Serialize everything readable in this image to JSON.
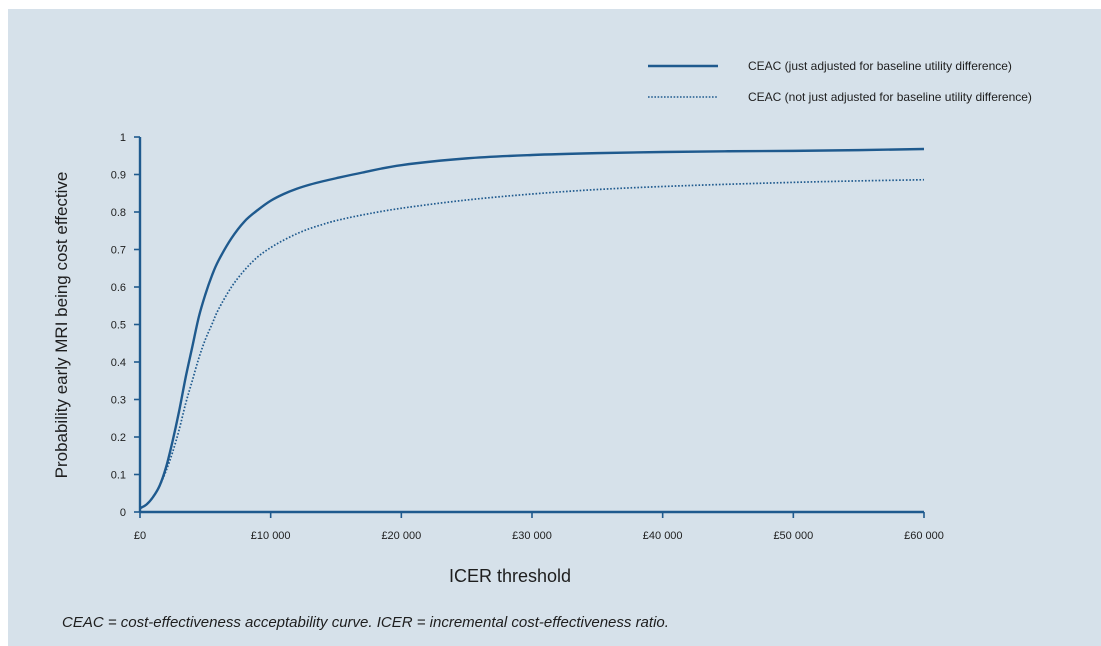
{
  "chart_data": {
    "type": "line",
    "xlabel": "ICER threshold",
    "ylabel": "Probability early MRI being cost effective",
    "xlim": [
      0,
      60000
    ],
    "ylim": [
      0,
      1
    ],
    "x_ticks": [
      0,
      10000,
      20000,
      30000,
      40000,
      50000,
      60000
    ],
    "x_tick_labels": [
      "£0",
      "£10 000",
      "£20 000",
      "£30 000",
      "£40 000",
      "£50 000",
      "£60 000"
    ],
    "y_ticks": [
      0,
      0.1,
      0.2,
      0.3,
      0.4,
      0.5,
      0.6,
      0.7,
      0.8,
      0.9,
      1
    ],
    "y_tick_labels": [
      "0",
      "0.1",
      "0.2",
      "0.3",
      "0.4",
      "0.5",
      "0.6",
      "0.7",
      "0.8",
      "0.9",
      "1"
    ],
    "grid": false,
    "legend_position": "top-right",
    "series": [
      {
        "name": "CEAC (just adjusted for baseline utility difference)",
        "style": "solid",
        "color": "#1f5a8e",
        "x": [
          0,
          500,
          1000,
          1500,
          2000,
          2500,
          3000,
          3500,
          4000,
          4500,
          5000,
          5500,
          6000,
          7000,
          8000,
          9000,
          10000,
          11000,
          12000,
          13000,
          14000,
          15000,
          17000,
          20000,
          25000,
          30000,
          35000,
          40000,
          45000,
          50000,
          55000,
          60000
        ],
        "y": [
          0.01,
          0.02,
          0.04,
          0.07,
          0.12,
          0.19,
          0.27,
          0.36,
          0.44,
          0.52,
          0.58,
          0.63,
          0.67,
          0.73,
          0.775,
          0.805,
          0.83,
          0.848,
          0.862,
          0.873,
          0.882,
          0.89,
          0.905,
          0.925,
          0.943,
          0.952,
          0.957,
          0.96,
          0.962,
          0.963,
          0.965,
          0.968
        ]
      },
      {
        "name": "CEAC (not just adjusted for baseline utility difference)",
        "style": "dotted",
        "color": "#1f5a8e",
        "x": [
          0,
          500,
          1000,
          1500,
          2000,
          2500,
          3000,
          3500,
          4000,
          4500,
          5000,
          5500,
          6000,
          7000,
          8000,
          9000,
          10000,
          11000,
          12000,
          13000,
          14000,
          15000,
          17000,
          20000,
          25000,
          30000,
          35000,
          40000,
          45000,
          50000,
          55000,
          60000
        ],
        "y": [
          0.01,
          0.02,
          0.04,
          0.07,
          0.11,
          0.16,
          0.22,
          0.29,
          0.35,
          0.41,
          0.46,
          0.5,
          0.54,
          0.6,
          0.645,
          0.68,
          0.705,
          0.725,
          0.742,
          0.756,
          0.767,
          0.777,
          0.792,
          0.81,
          0.832,
          0.848,
          0.86,
          0.868,
          0.874,
          0.879,
          0.883,
          0.886
        ]
      }
    ]
  },
  "footnote": "CEAC = cost-effectiveness acceptability curve. ICER = incremental cost-effectiveness ratio."
}
